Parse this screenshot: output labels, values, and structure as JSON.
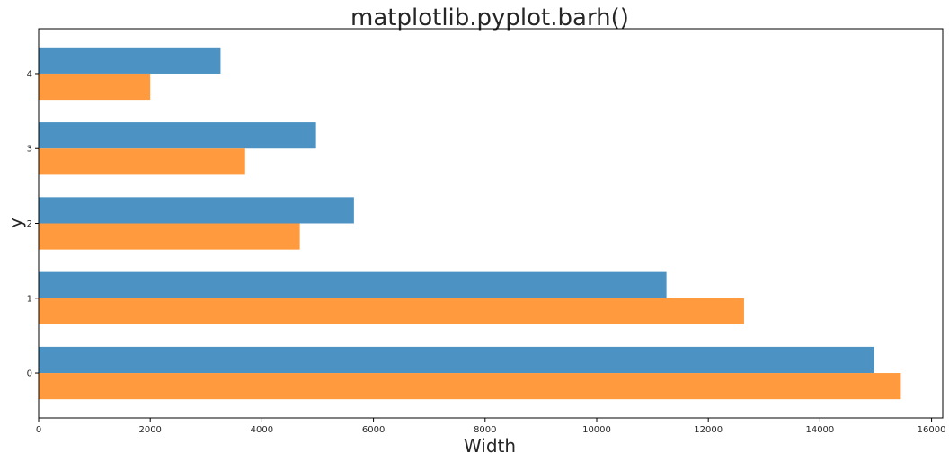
{
  "chart_data": {
    "type": "bar",
    "orientation": "horizontal",
    "title": "matplotlib.pyplot.barh()",
    "xlabel": "Width",
    "ylabel": "y",
    "categories": [
      "0",
      "1",
      "2",
      "3",
      "4"
    ],
    "xlim": [
      0,
      16200
    ],
    "x_ticks": [
      0,
      2000,
      4000,
      6000,
      8000,
      10000,
      12000,
      14000,
      16000
    ],
    "grid": false,
    "series": [
      {
        "values": [
          14970,
          11250,
          5650,
          4970,
          3260
        ],
        "color": "#4c92c3"
      },
      {
        "values": [
          15450,
          12640,
          4680,
          3700,
          2000
        ],
        "color": "#ff9a3e"
      }
    ]
  }
}
